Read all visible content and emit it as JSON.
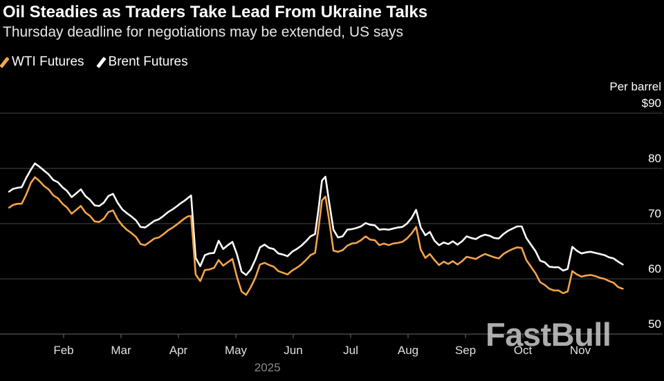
{
  "header": {
    "title": "Oil Steadies as Traders Take Lead From Ukraine Talks",
    "subtitle": "Thursday deadline for negotiations may be extended, US says"
  },
  "legend": [
    {
      "label": "WTI Futures",
      "color": "#f5a54a"
    },
    {
      "label": "Brent Futures",
      "color": "#ffffff"
    }
  ],
  "watermark": "FastBull",
  "chart_data": {
    "type": "line",
    "title": "Oil Steadies as Traders Take Lead From Ukraine Talks",
    "subtitle": "Thursday deadline for negotiations may be extended, US says",
    "ylabel": "Per barrel",
    "xlabel": "2025",
    "ylim": [
      50,
      90
    ],
    "xlim": [
      0,
      11.0
    ],
    "y_ticks": [
      {
        "value": 90,
        "label": "$90"
      },
      {
        "value": 80,
        "label": "80"
      },
      {
        "value": 70,
        "label": "70"
      },
      {
        "value": 60,
        "label": "60"
      },
      {
        "value": 50,
        "label": "50"
      }
    ],
    "x_ticks": [
      {
        "value": 1.0,
        "label": "Feb"
      },
      {
        "value": 2.0,
        "label": "Mar"
      },
      {
        "value": 3.0,
        "label": "Apr"
      },
      {
        "value": 4.0,
        "label": "May"
      },
      {
        "value": 5.0,
        "label": "Jun"
      },
      {
        "value": 6.0,
        "label": "Jul"
      },
      {
        "value": 7.0,
        "label": "Aug"
      },
      {
        "value": 8.0,
        "label": "Sep"
      },
      {
        "value": 9.0,
        "label": "Oct"
      },
      {
        "value": 10.0,
        "label": "Nov"
      }
    ],
    "x_unit": "months since Jan 1, 2025",
    "series": [
      {
        "name": "Brent Futures",
        "color": "#ffffff",
        "x": [
          0.05,
          0.12,
          0.2,
          0.27,
          0.35,
          0.43,
          0.5,
          0.58,
          0.66,
          0.74,
          0.82,
          0.9,
          0.98,
          1.06,
          1.14,
          1.22,
          1.3,
          1.38,
          1.46,
          1.54,
          1.62,
          1.7,
          1.78,
          1.86,
          1.94,
          2.02,
          2.1,
          2.18,
          2.26,
          2.34,
          2.42,
          2.5,
          2.58,
          2.66,
          2.74,
          2.82,
          2.9,
          2.98,
          3.04,
          3.1,
          3.16,
          3.22,
          3.3,
          3.38,
          3.46,
          3.54,
          3.62,
          3.7,
          3.78,
          3.86,
          3.94,
          4.02,
          4.1,
          4.18,
          4.26,
          4.34,
          4.42,
          4.5,
          4.58,
          4.66,
          4.74,
          4.82,
          4.9,
          4.98,
          5.06,
          5.14,
          5.22,
          5.3,
          5.38,
          5.44,
          5.5,
          5.56,
          5.62,
          5.7,
          5.78,
          5.86,
          5.94,
          6.02,
          6.1,
          6.18,
          6.26,
          6.34,
          6.42,
          6.5,
          6.58,
          6.66,
          6.74,
          6.82,
          6.9,
          6.98,
          7.06,
          7.14,
          7.22,
          7.3,
          7.38,
          7.46,
          7.54,
          7.62,
          7.7,
          7.78,
          7.86,
          7.94,
          8.02,
          8.1,
          8.18,
          8.26,
          8.34,
          8.42,
          8.5,
          8.58,
          8.66,
          8.74,
          8.82,
          8.9,
          8.98,
          9.06,
          9.14,
          9.22,
          9.3,
          9.38,
          9.46,
          9.54,
          9.62,
          9.7,
          9.78,
          9.86,
          9.94,
          10.02,
          10.1,
          10.18,
          10.26,
          10.34,
          10.42,
          10.5,
          10.58,
          10.66,
          10.74
        ],
        "values": [
          75.8,
          76.3,
          76.5,
          76.6,
          78.3,
          79.8,
          80.9,
          80.3,
          79.6,
          78.9,
          77.9,
          77.5,
          76.6,
          75.9,
          74.8,
          75.5,
          76.2,
          75.0,
          74.3,
          73.3,
          73.2,
          73.8,
          75.0,
          75.4,
          73.8,
          72.6,
          71.9,
          71.3,
          70.6,
          69.4,
          69.3,
          69.9,
          70.5,
          70.8,
          71.4,
          72.1,
          72.6,
          73.2,
          73.7,
          74.1,
          74.6,
          75.1,
          63.8,
          62.3,
          64.3,
          64.6,
          64.7,
          66.9,
          65.4,
          66.1,
          66.7,
          64.4,
          61.3,
          60.7,
          61.7,
          63.5,
          65.7,
          66.2,
          65.6,
          65.4,
          64.6,
          64.4,
          64.1,
          64.9,
          65.4,
          66.0,
          66.8,
          67.7,
          68.1,
          72.6,
          77.8,
          78.5,
          74.2,
          68.9,
          67.5,
          67.7,
          68.9,
          69.0,
          69.2,
          69.5,
          70.1,
          69.8,
          69.7,
          68.9,
          69.0,
          68.9,
          69.1,
          69.3,
          69.4,
          70.0,
          71.0,
          72.5,
          69.3,
          67.9,
          68.5,
          66.9,
          66.1,
          66.6,
          66.3,
          66.8,
          66.2,
          66.8,
          67.7,
          67.4,
          67.2,
          67.7,
          68.0,
          67.8,
          67.4,
          67.3,
          68.1,
          68.7,
          69.1,
          69.5,
          69.5,
          67.4,
          66.2,
          65.0,
          63.3,
          63.0,
          62.2,
          62.1,
          62.1,
          61.5,
          61.8,
          65.8,
          65.1,
          64.6,
          64.8,
          64.9,
          64.7,
          64.5,
          64.3,
          63.9,
          63.7,
          63.1,
          62.6
        ]
      },
      {
        "name": "WTI Futures",
        "color": "#f5a54a",
        "x": [
          0.05,
          0.12,
          0.2,
          0.27,
          0.35,
          0.43,
          0.5,
          0.58,
          0.66,
          0.74,
          0.82,
          0.9,
          0.98,
          1.06,
          1.14,
          1.22,
          1.3,
          1.38,
          1.46,
          1.54,
          1.62,
          1.7,
          1.78,
          1.86,
          1.94,
          2.02,
          2.1,
          2.18,
          2.26,
          2.34,
          2.42,
          2.5,
          2.58,
          2.66,
          2.74,
          2.82,
          2.9,
          2.98,
          3.04,
          3.1,
          3.16,
          3.22,
          3.3,
          3.38,
          3.46,
          3.54,
          3.62,
          3.7,
          3.78,
          3.86,
          3.94,
          4.02,
          4.1,
          4.18,
          4.26,
          4.34,
          4.42,
          4.5,
          4.58,
          4.66,
          4.74,
          4.82,
          4.9,
          4.98,
          5.06,
          5.14,
          5.22,
          5.3,
          5.38,
          5.44,
          5.5,
          5.56,
          5.62,
          5.7,
          5.78,
          5.86,
          5.94,
          6.02,
          6.1,
          6.18,
          6.26,
          6.34,
          6.42,
          6.5,
          6.58,
          6.66,
          6.74,
          6.82,
          6.9,
          6.98,
          7.06,
          7.14,
          7.22,
          7.3,
          7.38,
          7.46,
          7.54,
          7.62,
          7.7,
          7.78,
          7.86,
          7.94,
          8.02,
          8.1,
          8.18,
          8.26,
          8.34,
          8.42,
          8.5,
          8.58,
          8.66,
          8.74,
          8.82,
          8.9,
          8.98,
          9.06,
          9.14,
          9.22,
          9.3,
          9.38,
          9.46,
          9.54,
          9.62,
          9.7,
          9.78,
          9.86,
          9.94,
          10.02,
          10.1,
          10.18,
          10.26,
          10.34,
          10.42,
          10.5,
          10.58,
          10.66,
          10.74
        ],
        "values": [
          72.9,
          73.4,
          73.6,
          73.6,
          75.3,
          77.4,
          78.4,
          77.7,
          76.8,
          76.2,
          75.1,
          74.6,
          73.6,
          72.9,
          71.8,
          72.5,
          73.2,
          72.0,
          71.4,
          70.4,
          70.3,
          70.9,
          72.1,
          72.4,
          70.8,
          69.7,
          68.9,
          68.3,
          67.6,
          66.3,
          66.1,
          66.7,
          67.3,
          67.5,
          68.1,
          68.8,
          69.3,
          69.9,
          70.4,
          70.9,
          71.3,
          71.4,
          60.8,
          59.6,
          61.6,
          61.7,
          62.0,
          63.4,
          62.4,
          63.0,
          63.6,
          60.3,
          57.7,
          57.1,
          58.5,
          60.2,
          62.6,
          62.9,
          62.5,
          62.2,
          61.4,
          61.1,
          60.8,
          61.5,
          62.0,
          62.6,
          63.4,
          64.3,
          64.7,
          69.1,
          74.2,
          74.9,
          70.9,
          65.1,
          64.9,
          65.2,
          66.0,
          66.4,
          66.5,
          67.0,
          67.7,
          67.1,
          67.0,
          66.1,
          66.4,
          66.1,
          66.4,
          66.5,
          66.7,
          67.3,
          68.2,
          69.4,
          65.3,
          63.8,
          64.5,
          63.4,
          62.5,
          63.1,
          62.7,
          63.2,
          62.6,
          63.2,
          64.0,
          63.8,
          63.6,
          64.1,
          64.5,
          64.2,
          63.9,
          63.7,
          64.5,
          65.0,
          65.4,
          65.7,
          65.6,
          63.4,
          62.2,
          61.0,
          59.4,
          58.9,
          58.2,
          57.9,
          57.9,
          57.4,
          57.7,
          61.4,
          60.8,
          60.4,
          60.6,
          60.7,
          60.5,
          60.2,
          60.0,
          59.6,
          59.3,
          58.5,
          58.2
        ]
      }
    ]
  }
}
